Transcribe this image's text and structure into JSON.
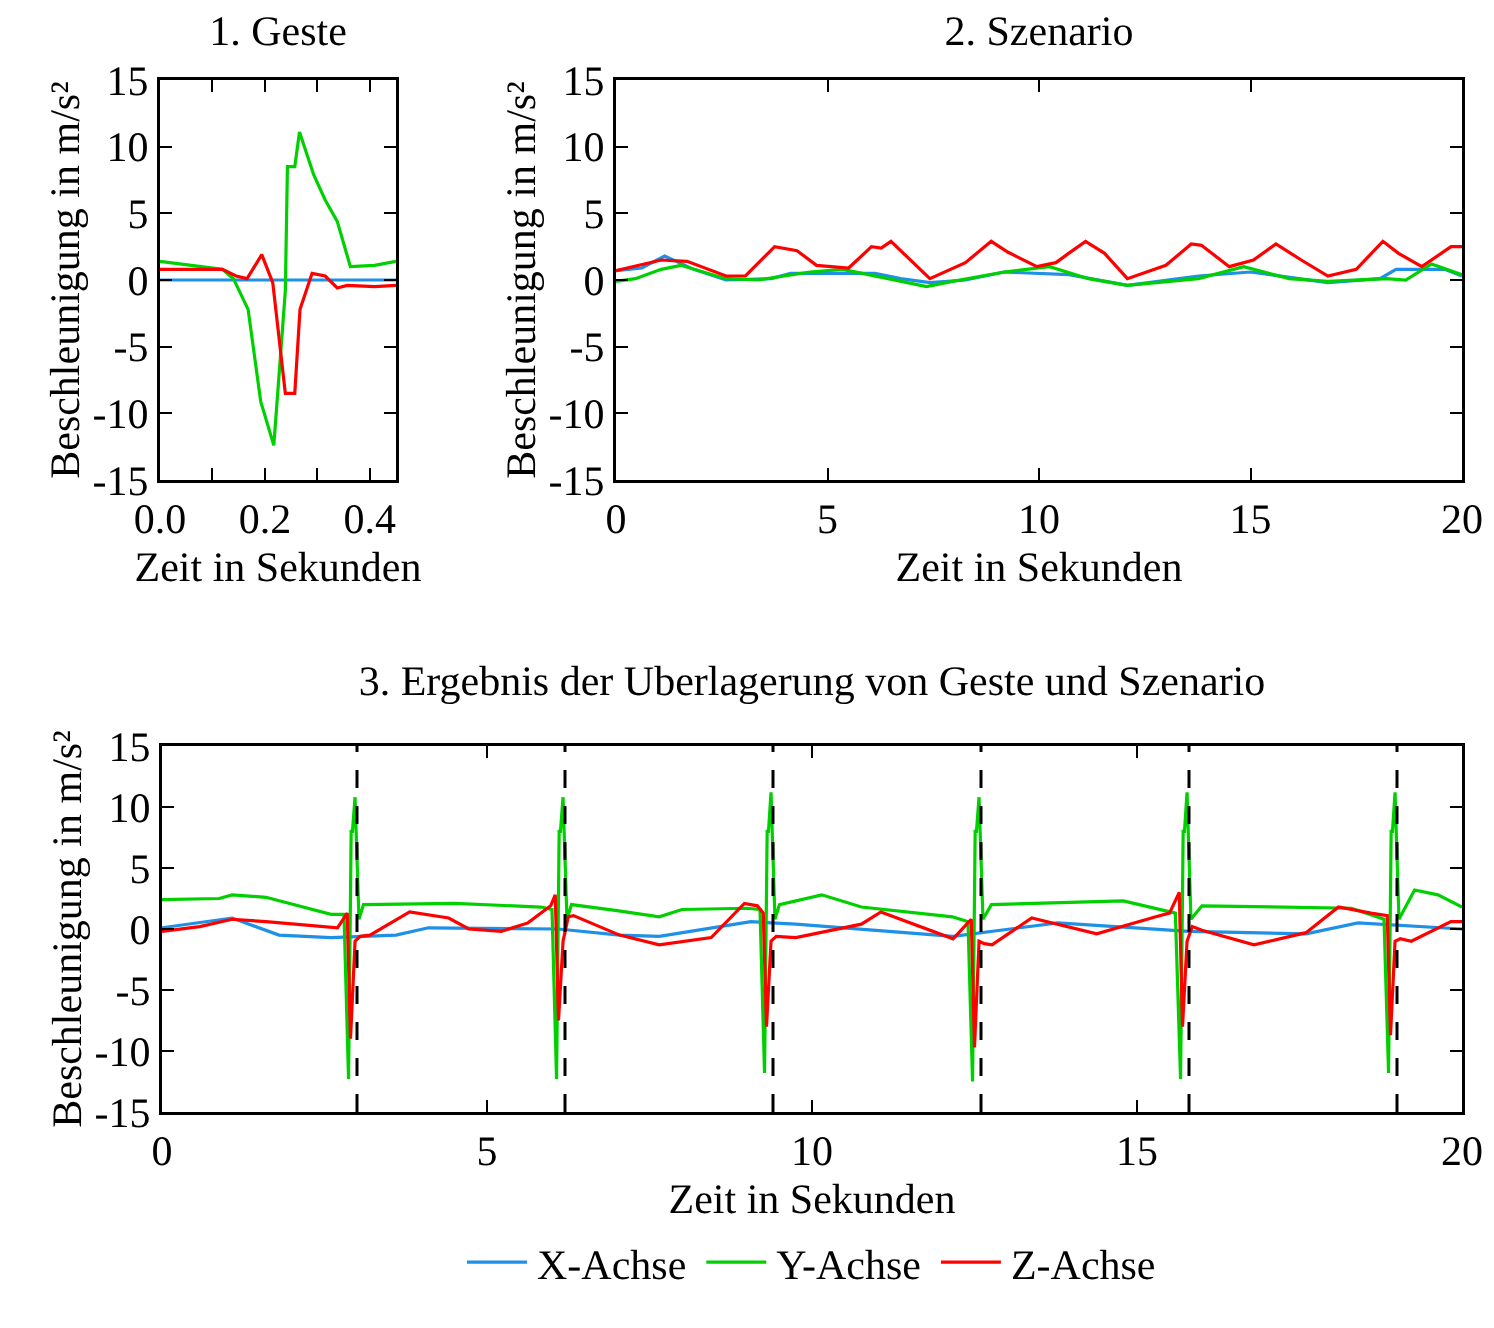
{
  "chart_data": [
    {
      "type": "line",
      "title": "1. Geste",
      "xlabel": "Zeit in Sekunden",
      "ylabel": "Beschleunigung in m/s²",
      "xlim": [
        0,
        0.45
      ],
      "xticks": [
        {
          "value": 0,
          "label": "0.0"
        },
        {
          "value": 0.1,
          "label": null
        },
        {
          "value": 0.2,
          "label": "0.2"
        },
        {
          "value": 0.3,
          "label": null
        },
        {
          "value": 0.4,
          "label": "0.4"
        }
      ],
      "ylim": [
        -15,
        15
      ],
      "yticks": [
        -15,
        -10,
        -5,
        0,
        5,
        10,
        15
      ],
      "grid": false,
      "line_style": "solid",
      "marker": "none",
      "series": [
        {
          "color": "#1e90e6",
          "x": [
            0,
            0.45
          ],
          "values": [
            0,
            0
          ]
        },
        {
          "color": "#00d000",
          "x": [
            0,
            0.119,
            0.14,
            0.168,
            0.192,
            0.217,
            0.239,
            0.243,
            0.257,
            0.266,
            0.293,
            0.315,
            0.338,
            0.363,
            0.409,
            0.45
          ],
          "values": [
            1.4,
            0.8,
            0.1,
            -2.2,
            -9.1,
            -12.4,
            -0.8,
            8.5,
            8.5,
            11.1,
            7.9,
            6.0,
            4.4,
            1.0,
            1.1,
            1.4
          ]
        },
        {
          "color": "#ff0000",
          "x": [
            0,
            0.119,
            0.145,
            0.166,
            0.194,
            0.215,
            0.239,
            0.257,
            0.267,
            0.29,
            0.315,
            0.338,
            0.357,
            0.409,
            0.45
          ],
          "values": [
            0.8,
            0.8,
            0.3,
            0.1,
            1.9,
            -0.2,
            -8.5,
            -8.5,
            -2.2,
            0.5,
            0.3,
            -0.6,
            -0.4,
            -0.5,
            -0.4
          ]
        }
      ]
    },
    {
      "type": "line",
      "title": "2. Szenario",
      "xlabel": "Zeit in Sekunden",
      "ylabel": "Beschleunigung in m/s²",
      "xlim": [
        0,
        20
      ],
      "xticks": [
        0,
        5,
        10,
        15,
        20
      ],
      "ylim": [
        -15,
        15
      ],
      "yticks": [
        -15,
        -10,
        -5,
        0,
        5,
        10,
        15
      ],
      "grid": false,
      "line_style": "solid",
      "marker": "none",
      "series": [
        {
          "color": "#1e90e6",
          "x": [
            0,
            0.61,
            1.15,
            1.84,
            2.6,
            3.67,
            4.13,
            6.12,
            6.73,
            7.42,
            8.26,
            9.18,
            10.71,
            12.09,
            13.77,
            15.0,
            16.83,
            18.06,
            18.44,
            19.59,
            20
          ],
          "values": [
            0.7,
            0.9,
            1.8,
            0.8,
            0,
            0.1,
            0.5,
            0.5,
            0.1,
            -0.2,
            0,
            0.6,
            0.4,
            -0.4,
            0.3,
            0.6,
            -0.2,
            0.1,
            0.8,
            0.8,
            0.3
          ]
        },
        {
          "color": "#00d000",
          "x": [
            0,
            0.46,
            1.07,
            1.53,
            2.6,
            3.37,
            4.59,
            5.36,
            6.43,
            7.34,
            7.96,
            9.18,
            10.25,
            11.17,
            12.09,
            13.77,
            14.84,
            15.91,
            16.83,
            18.21,
            18.67,
            19.28,
            20
          ],
          "values": [
            -0.1,
            0.1,
            0.8,
            1.1,
            0.1,
            0,
            0.6,
            0.8,
            0.1,
            -0.5,
            -0.1,
            0.6,
            1.0,
            0.1,
            -0.4,
            0.1,
            1.0,
            0.1,
            -0.1,
            0.1,
            0,
            1.2,
            0.4
          ]
        },
        {
          "color": "#ff0000",
          "x": [
            0,
            1.07,
            1.68,
            2.6,
            3.06,
            3.75,
            4.28,
            4.74,
            5.5,
            6.04,
            6.27,
            6.5,
            7.42,
            8.26,
            8.87,
            9.26,
            9.95,
            10.4,
            10.7,
            11.1,
            11.55,
            12.09,
            13.0,
            13.6,
            13.84,
            14.5,
            15.07,
            15.6,
            16.2,
            16.83,
            17.5,
            18.13,
            18.5,
            19.05,
            19.74,
            20
          ],
          "values": [
            0.7,
            1.5,
            1.4,
            0.3,
            0.3,
            2.5,
            2.2,
            1.1,
            0.9,
            2.5,
            2.4,
            2.9,
            0.1,
            1.3,
            2.9,
            2.1,
            1.0,
            1.3,
            2.0,
            2.9,
            2.0,
            0.1,
            1.1,
            2.7,
            2.6,
            1.0,
            1.5,
            2.7,
            1.5,
            0.3,
            0.8,
            2.9,
            2.0,
            1.0,
            2.5,
            2.5
          ]
        }
      ]
    },
    {
      "type": "line",
      "title": "3. Ergebnis der Uberlagerung von Geste und Szenario",
      "xlabel": "Zeit in Sekunden",
      "ylabel": "Beschleunigung in m/s²",
      "xlim": [
        0,
        20
      ],
      "xticks": [
        0,
        5,
        10,
        15,
        20
      ],
      "ylim": [
        -15,
        15
      ],
      "yticks": [
        -15,
        -10,
        -5,
        0,
        5,
        10,
        15
      ],
      "grid": false,
      "line_style": "solid",
      "marker": "none",
      "legend": "bottom",
      "ref_lines": [
        {
          "axis": "x",
          "value": 3.0,
          "color": "#000000",
          "line_style": "dashed"
        },
        {
          "axis": "x",
          "value": 6.2,
          "color": "#000000",
          "line_style": "dashed"
        },
        {
          "axis": "x",
          "value": 9.4,
          "color": "#000000",
          "line_style": "dashed"
        },
        {
          "axis": "x",
          "value": 12.6,
          "color": "#000000",
          "line_style": "dashed"
        },
        {
          "axis": "x",
          "value": 15.8,
          "color": "#000000",
          "line_style": "dashed"
        },
        {
          "axis": "x",
          "value": 19.0,
          "color": "#000000",
          "line_style": "dashed"
        }
      ],
      "series": [
        {
          "name": "X-Achse",
          "color": "#1e90e6",
          "x": [
            0,
            1.08,
            1.8,
            2.6,
            3.6,
            4.1,
            6.1,
            7.04,
            7.65,
            9.06,
            9.75,
            12.17,
            13.78,
            15.8,
            17.6,
            18.4,
            20
          ],
          "values": [
            0.1,
            0.9,
            -0.5,
            -0.7,
            -0.5,
            0.1,
            0,
            -0.5,
            -0.6,
            0.6,
            0.4,
            -0.6,
            0.5,
            -0.2,
            -0.4,
            0.5,
            0
          ]
        },
        {
          "name": "Y-Achse",
          "color": "#00d000",
          "x": [
            0,
            0.88,
            1.08,
            1.6,
            2.6,
            2.8,
            2.87,
            2.91,
            2.93,
            2.97,
            3.03,
            3.1,
            4.5,
            5.83,
            6.0,
            6.07,
            6.11,
            6.13,
            6.17,
            6.23,
            6.3,
            7.0,
            7.65,
            8.0,
            9.0,
            9.2,
            9.27,
            9.31,
            9.33,
            9.37,
            9.43,
            9.5,
            10.15,
            10.76,
            12.16,
            12.4,
            12.47,
            12.51,
            12.53,
            12.57,
            12.63,
            12.76,
            14.79,
            15.59,
            15.67,
            15.71,
            15.73,
            15.77,
            15.83,
            16.0,
            18.3,
            18.8,
            18.87,
            18.91,
            18.93,
            18.97,
            19.03,
            19.27,
            19.63,
            20
          ],
          "values": [
            2.4,
            2.5,
            2.8,
            2.6,
            1.2,
            1.2,
            -12.3,
            8,
            8,
            10.8,
            0.8,
            2.0,
            2.1,
            1.8,
            1.6,
            -12.3,
            8,
            8,
            10.8,
            0.8,
            2.0,
            1.5,
            1.0,
            1.6,
            1.7,
            1.6,
            -11.8,
            8,
            8,
            11.2,
            0.8,
            2.0,
            2.8,
            1.8,
            1.0,
            0.6,
            -12.5,
            8,
            8,
            10.8,
            0.8,
            2.0,
            2.3,
            1.3,
            -12.3,
            8,
            8,
            11.2,
            0.8,
            1.9,
            1.7,
            0.8,
            -11.8,
            8,
            8,
            11.2,
            0.8,
            3.2,
            2.8,
            1.8
          ]
        },
        {
          "name": "Z-Achse",
          "color": "#ff0000",
          "x": [
            0,
            0.58,
            1.08,
            1.6,
            2.7,
            2.85,
            2.9,
            2.97,
            3.05,
            3.2,
            3.81,
            4.41,
            4.72,
            5.22,
            5.63,
            5.98,
            6.05,
            6.1,
            6.17,
            6.25,
            6.33,
            7.04,
            7.65,
            8.45,
            8.96,
            9.16,
            9.25,
            9.3,
            9.37,
            9.45,
            9.75,
            10.76,
            11.06,
            12.17,
            12.45,
            12.5,
            12.57,
            12.65,
            12.77,
            13.38,
            14.38,
            15.29,
            15.5,
            15.65,
            15.7,
            15.77,
            15.85,
            16.0,
            16.8,
            17.6,
            18.1,
            18.6,
            18.85,
            18.9,
            18.97,
            19.05,
            19.22,
            19.83,
            20
          ],
          "values": [
            -0.2,
            0.2,
            0.8,
            0.6,
            0.1,
            1.3,
            -9,
            -1,
            -0.6,
            -0.5,
            1.4,
            0.9,
            0,
            -0.2,
            0.5,
            1.9,
            2.8,
            -7.5,
            -1,
            1.0,
            1.1,
            -0.5,
            -1.3,
            -0.7,
            2.1,
            1.9,
            1.3,
            -8,
            -1,
            -0.6,
            -0.7,
            0.4,
            1.4,
            -0.8,
            0.8,
            -9.7,
            -1,
            -1.2,
            -1.3,
            0.9,
            -0.4,
            1.0,
            1.3,
            3.0,
            -8,
            -1,
            0.2,
            -0.1,
            -1.3,
            -0.3,
            1.8,
            1.3,
            1.1,
            -8.7,
            -1,
            -0.8,
            -1.0,
            0.6,
            0.6
          ]
        }
      ]
    }
  ]
}
